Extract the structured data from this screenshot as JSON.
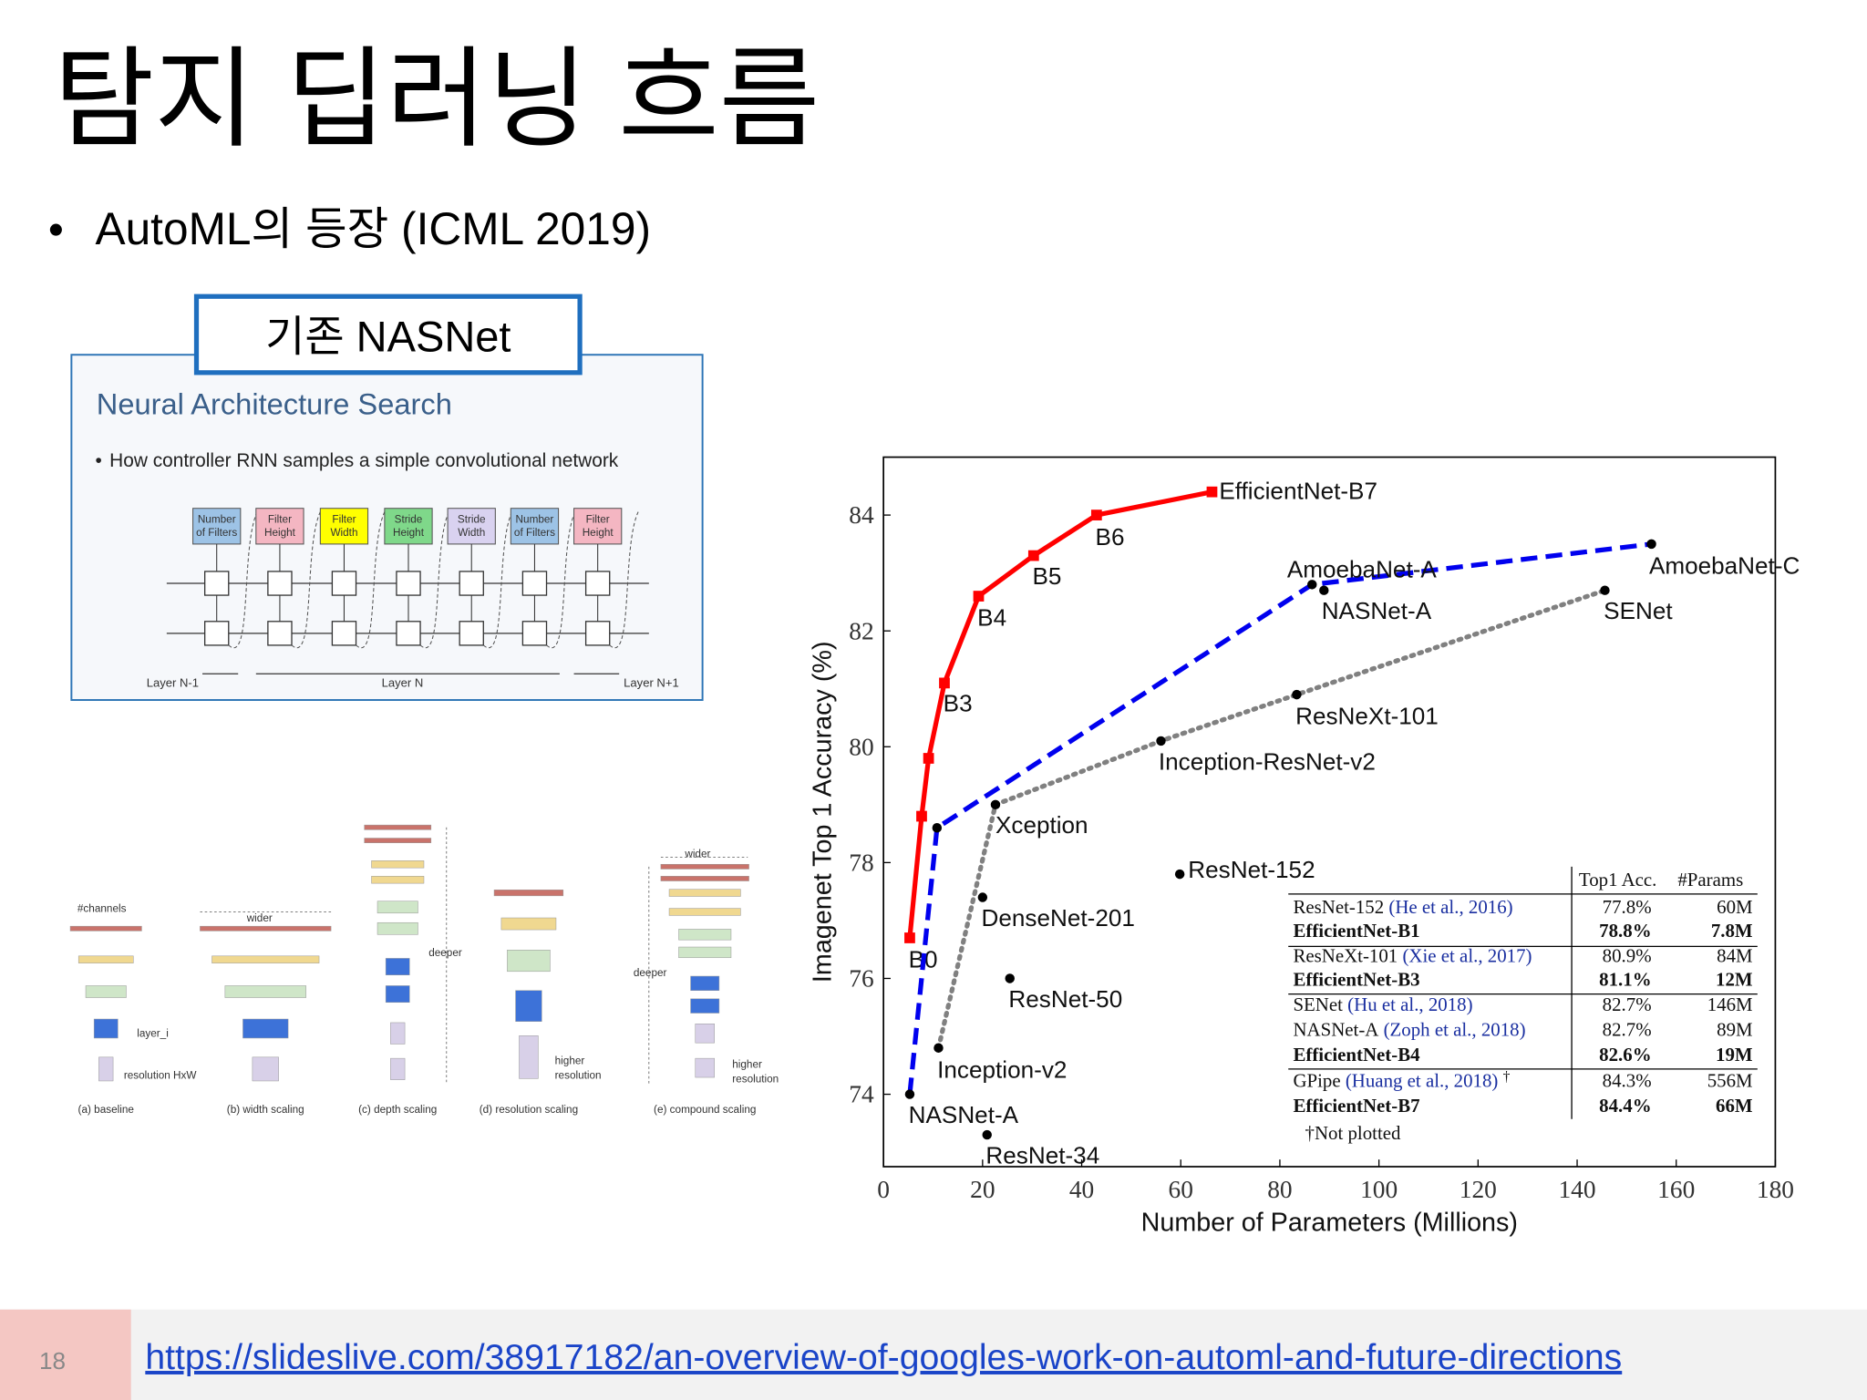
{
  "slide": {
    "title": "탐지 딥러닝 흐름",
    "bullet": "AutoML의 등장 (ICML 2019)",
    "box_label": "기존 NASNet",
    "page_number": "18",
    "link": "https://slideslive.com/38917182/an-overview-of-googles-work-on-automl-and-future-directions"
  },
  "nas_diagram": {
    "title": "Neural Architecture Search",
    "bullet": "How controller RNN samples a simple convolutional network",
    "boxes": [
      {
        "lines": [
          "Number",
          "of Filters"
        ],
        "color": "#9dc3e6"
      },
      {
        "lines": [
          "Filter",
          "Height"
        ],
        "color": "#f4b6c2"
      },
      {
        "lines": [
          "Filter",
          "Width"
        ],
        "color": "#ffff00"
      },
      {
        "lines": [
          "Stride",
          "Height"
        ],
        "color": "#7fd88a"
      },
      {
        "lines": [
          "Stride",
          "Width"
        ],
        "color": "#d9d2f0"
      },
      {
        "lines": [
          "Number",
          "of Filters"
        ],
        "color": "#9dc3e6"
      },
      {
        "lines": [
          "Filter",
          "Height"
        ],
        "color": "#f4b6c2"
      }
    ],
    "layers": [
      "Layer N-1",
      "Layer N",
      "Layer N+1"
    ]
  },
  "scaling_diagram": {
    "captions": [
      "(a) baseline",
      "(b) width scaling",
      "(c) depth scaling",
      "(d) resolution scaling",
      "(e) compound scaling"
    ],
    "labels": {
      "channels": "#channels",
      "layer": "layer_i",
      "resolution": "resolution HxW",
      "wider_b": "wider",
      "deeper_c": "deeper",
      "higher_d": [
        "higher",
        "resolution"
      ],
      "wider_e": "wider",
      "deeper_e": "deeper",
      "higher_e": [
        "higher",
        "resolution"
      ]
    }
  },
  "chart_data": {
    "type": "line",
    "xlabel": "Number of Parameters (Millions)",
    "ylabel": "Imagenet Top 1 Accuracy (%)",
    "xlim": [
      0,
      180
    ],
    "ylim": [
      72.75,
      85
    ],
    "xticks": [
      0,
      20,
      40,
      60,
      80,
      100,
      120,
      140,
      160,
      180
    ],
    "yticks": [
      74,
      76,
      78,
      80,
      82,
      84
    ],
    "series": [
      {
        "color": "#ff0000",
        "marker_color": "#ff0000",
        "dash": "solid",
        "marker": "square",
        "x": [
          5.3,
          7.7,
          9.1,
          12.3,
          19.2,
          30.3,
          43,
          66.3
        ],
        "values": [
          76.7,
          78.8,
          79.8,
          81.1,
          82.6,
          83.3,
          84.0,
          84.4
        ],
        "labels": [
          "B0",
          null,
          null,
          "B3",
          "B4",
          "B5",
          "B6",
          "EfficientNet-B7"
        ]
      },
      {
        "color": "#0000ee",
        "marker_color": "#000000",
        "dash": "dashed",
        "marker": "circle",
        "x": [
          5.3,
          10.8,
          86.5,
          155
        ],
        "values": [
          74.0,
          78.6,
          82.8,
          83.5
        ],
        "labels": [
          "NASNet-A",
          null,
          "AmoebaNet-A",
          "AmoebaNet-C"
        ]
      },
      {
        "color": "#808080",
        "marker_color": "#000000",
        "dash": "dotted",
        "marker": "circle",
        "x": [
          11.1,
          22.6,
          56,
          83.4,
          145.6
        ],
        "values": [
          74.8,
          79.0,
          80.1,
          80.9,
          82.7
        ],
        "labels": [
          "Inception-v2",
          "Xception",
          "Inception-ResNet-v2",
          "ResNeXt-101",
          "SENet"
        ]
      },
      {
        "color": "#000000",
        "marker_color": "#000000",
        "dash": "none",
        "marker": "circle",
        "x": [
          88.9,
          59.8,
          20,
          25.5,
          20.9
        ],
        "values": [
          82.7,
          77.8,
          77.4,
          76.0,
          73.3
        ],
        "labels": [
          "NASNet-A",
          "ResNet-152",
          "DenseNet-201",
          "ResNet-50",
          "ResNet-34"
        ]
      }
    ],
    "table": {
      "header": [
        "Top1 Acc.",
        "#Params"
      ],
      "rows": [
        {
          "model": "ResNet-152",
          "cite": "(He et al., 2016)",
          "acc": "77.8%",
          "params": "60M",
          "bold": false
        },
        {
          "model": "EfficientNet-B1",
          "acc": "78.8%",
          "params": "7.8M",
          "bold": true
        },
        {
          "model": "ResNeXt-101",
          "cite": "(Xie et al., 2017)",
          "acc": "80.9%",
          "params": "84M",
          "bold": false
        },
        {
          "model": "EfficientNet-B3",
          "acc": "81.1%",
          "params": "12M",
          "bold": true
        },
        {
          "model": "SENet",
          "cite": "(Hu et al., 2018)",
          "acc": "82.7%",
          "params": "146M",
          "bold": false
        },
        {
          "model": "NASNet-A",
          "cite": "(Zoph et al., 2018)",
          "acc": "82.7%",
          "params": "89M",
          "bold": false
        },
        {
          "model": "EfficientNet-B4",
          "acc": "82.6%",
          "params": "19M",
          "bold": true
        },
        {
          "model": "GPipe",
          "cite": "(Huang et al., 2018)",
          "mark": "†",
          "acc": "84.3%",
          "params": "556M",
          "bold": false
        },
        {
          "model": "EfficientNet-B7",
          "acc": "84.4%",
          "params": "66M",
          "bold": true
        }
      ],
      "footnote": "†Not plotted"
    }
  }
}
